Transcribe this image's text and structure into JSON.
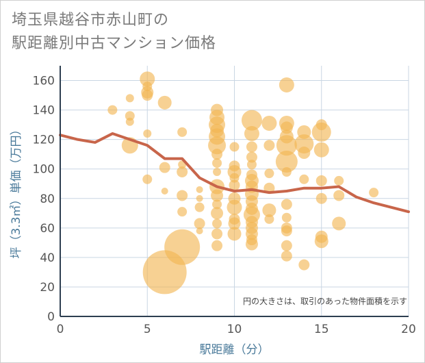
{
  "title": {
    "line1": "埼玉県越谷市赤山町の",
    "line2": "駅距離別中古マンション価格"
  },
  "colors": {
    "bubble": "#f2b450",
    "line": "#c8654a",
    "grid": "#c9d6e3",
    "axis": "#2d3e50"
  },
  "chart_data": {
    "type": "scatter",
    "xlabel": "駅距離（分）",
    "ylabel": "坪（3.3㎡）単価（万円）",
    "xlim": [
      0,
      20
    ],
    "ylim": [
      0,
      170
    ],
    "xticks": [
      "0",
      "5",
      "10",
      "15",
      "20"
    ],
    "yticks": [
      "0",
      "20",
      "40",
      "60",
      "80",
      "100",
      "120",
      "140",
      "160"
    ],
    "grid": true,
    "annotation": "円の大きさは、取引のあった物件面積を示す",
    "bubbles": [
      {
        "x": 3,
        "y": 140,
        "s": 7
      },
      {
        "x": 4,
        "y": 148,
        "s": 6
      },
      {
        "x": 4,
        "y": 136,
        "s": 7
      },
      {
        "x": 4,
        "y": 132,
        "s": 6
      },
      {
        "x": 4,
        "y": 116,
        "s": 12
      },
      {
        "x": 5,
        "y": 161,
        "s": 11
      },
      {
        "x": 5,
        "y": 156,
        "s": 7
      },
      {
        "x": 5,
        "y": 152,
        "s": 9
      },
      {
        "x": 5,
        "y": 150,
        "s": 8
      },
      {
        "x": 5,
        "y": 124,
        "s": 6
      },
      {
        "x": 5,
        "y": 93,
        "s": 7
      },
      {
        "x": 6,
        "y": 145,
        "s": 10
      },
      {
        "x": 6,
        "y": 101,
        "s": 8
      },
      {
        "x": 6,
        "y": 85,
        "s": 5
      },
      {
        "x": 6,
        "y": 30,
        "s": 32
      },
      {
        "x": 7,
        "y": 125,
        "s": 7
      },
      {
        "x": 7,
        "y": 103,
        "s": 6
      },
      {
        "x": 7,
        "y": 98,
        "s": 8
      },
      {
        "x": 7,
        "y": 82,
        "s": 8
      },
      {
        "x": 7,
        "y": 71,
        "s": 7
      },
      {
        "x": 7,
        "y": 47,
        "s": 26
      },
      {
        "x": 8,
        "y": 86,
        "s": 5
      },
      {
        "x": 8,
        "y": 80,
        "s": 5
      },
      {
        "x": 8,
        "y": 74,
        "s": 7
      },
      {
        "x": 8,
        "y": 63,
        "s": 8
      },
      {
        "x": 8,
        "y": 58,
        "s": 5
      },
      {
        "x": 9,
        "y": 140,
        "s": 9
      },
      {
        "x": 9,
        "y": 135,
        "s": 11
      },
      {
        "x": 9,
        "y": 130,
        "s": 12
      },
      {
        "x": 9,
        "y": 126,
        "s": 10
      },
      {
        "x": 9,
        "y": 122,
        "s": 12
      },
      {
        "x": 9,
        "y": 116,
        "s": 13
      },
      {
        "x": 9,
        "y": 110,
        "s": 8
      },
      {
        "x": 9,
        "y": 104,
        "s": 7
      },
      {
        "x": 9,
        "y": 98,
        "s": 6
      },
      {
        "x": 9,
        "y": 88,
        "s": 11
      },
      {
        "x": 9,
        "y": 82,
        "s": 9
      },
      {
        "x": 9,
        "y": 76,
        "s": 7
      },
      {
        "x": 9,
        "y": 70,
        "s": 9
      },
      {
        "x": 9,
        "y": 63,
        "s": 7
      },
      {
        "x": 9,
        "y": 56,
        "s": 8
      },
      {
        "x": 9,
        "y": 48,
        "s": 8
      },
      {
        "x": 10,
        "y": 115,
        "s": 7
      },
      {
        "x": 10,
        "y": 102,
        "s": 8
      },
      {
        "x": 10,
        "y": 98,
        "s": 10
      },
      {
        "x": 10,
        "y": 94,
        "s": 7
      },
      {
        "x": 10,
        "y": 89,
        "s": 8
      },
      {
        "x": 10,
        "y": 80,
        "s": 9
      },
      {
        "x": 10,
        "y": 74,
        "s": 11
      },
      {
        "x": 10,
        "y": 66,
        "s": 8
      },
      {
        "x": 10,
        "y": 63,
        "s": 9
      },
      {
        "x": 10,
        "y": 56,
        "s": 10
      },
      {
        "x": 11,
        "y": 133,
        "s": 15
      },
      {
        "x": 11,
        "y": 124,
        "s": 11
      },
      {
        "x": 11,
        "y": 115,
        "s": 8
      },
      {
        "x": 11,
        "y": 108,
        "s": 8
      },
      {
        "x": 11,
        "y": 103,
        "s": 7
      },
      {
        "x": 11,
        "y": 96,
        "s": 8
      },
      {
        "x": 11,
        "y": 92,
        "s": 10
      },
      {
        "x": 11,
        "y": 88,
        "s": 9
      },
      {
        "x": 11,
        "y": 83,
        "s": 10
      },
      {
        "x": 11,
        "y": 78,
        "s": 9
      },
      {
        "x": 11,
        "y": 73,
        "s": 9
      },
      {
        "x": 11,
        "y": 69,
        "s": 12
      },
      {
        "x": 11,
        "y": 64,
        "s": 9
      },
      {
        "x": 11,
        "y": 60,
        "s": 9
      },
      {
        "x": 11,
        "y": 56,
        "s": 9
      },
      {
        "x": 11,
        "y": 52,
        "s": 8
      },
      {
        "x": 11,
        "y": 49,
        "s": 9
      },
      {
        "x": 12,
        "y": 131,
        "s": 11
      },
      {
        "x": 12,
        "y": 116,
        "s": 8
      },
      {
        "x": 12,
        "y": 97,
        "s": 7
      },
      {
        "x": 12,
        "y": 87,
        "s": 8
      },
      {
        "x": 12,
        "y": 72,
        "s": 10
      },
      {
        "x": 12,
        "y": 66,
        "s": 7
      },
      {
        "x": 13,
        "y": 157,
        "s": 11
      },
      {
        "x": 13,
        "y": 131,
        "s": 11
      },
      {
        "x": 13,
        "y": 128,
        "s": 9
      },
      {
        "x": 13,
        "y": 122,
        "s": 10
      },
      {
        "x": 13,
        "y": 116,
        "s": 15
      },
      {
        "x": 13,
        "y": 105,
        "s": 16
      },
      {
        "x": 13,
        "y": 98,
        "s": 7
      },
      {
        "x": 13,
        "y": 76,
        "s": 8
      },
      {
        "x": 13,
        "y": 67,
        "s": 7
      },
      {
        "x": 13,
        "y": 60,
        "s": 8
      },
      {
        "x": 13,
        "y": 58,
        "s": 8
      },
      {
        "x": 13,
        "y": 48,
        "s": 8
      },
      {
        "x": 13,
        "y": 41,
        "s": 8
      },
      {
        "x": 14,
        "y": 125,
        "s": 10
      },
      {
        "x": 14,
        "y": 117,
        "s": 14
      },
      {
        "x": 14,
        "y": 111,
        "s": 9
      },
      {
        "x": 14,
        "y": 93,
        "s": 7
      },
      {
        "x": 14,
        "y": 35,
        "s": 8
      },
      {
        "x": 15,
        "y": 130,
        "s": 8
      },
      {
        "x": 15,
        "y": 125,
        "s": 14
      },
      {
        "x": 15,
        "y": 113,
        "s": 11
      },
      {
        "x": 15,
        "y": 92,
        "s": 8
      },
      {
        "x": 15,
        "y": 80,
        "s": 8
      },
      {
        "x": 15,
        "y": 54,
        "s": 9
      },
      {
        "x": 15,
        "y": 51,
        "s": 10
      },
      {
        "x": 16,
        "y": 92,
        "s": 7
      },
      {
        "x": 16,
        "y": 82,
        "s": 8
      },
      {
        "x": 16,
        "y": 63,
        "s": 10
      },
      {
        "x": 18,
        "y": 84,
        "s": 7
      }
    ],
    "series": [
      {
        "type": "line",
        "x": [
          0,
          1,
          2,
          3,
          4,
          5,
          6,
          7,
          8,
          9,
          10,
          11,
          12,
          13,
          14,
          15,
          16,
          17,
          18,
          19,
          20
        ],
        "values": [
          123,
          120,
          118,
          124,
          120,
          116,
          107,
          107,
          94,
          88,
          85,
          86,
          84,
          85,
          87,
          87,
          88,
          81,
          77,
          74,
          71
        ]
      }
    ]
  }
}
